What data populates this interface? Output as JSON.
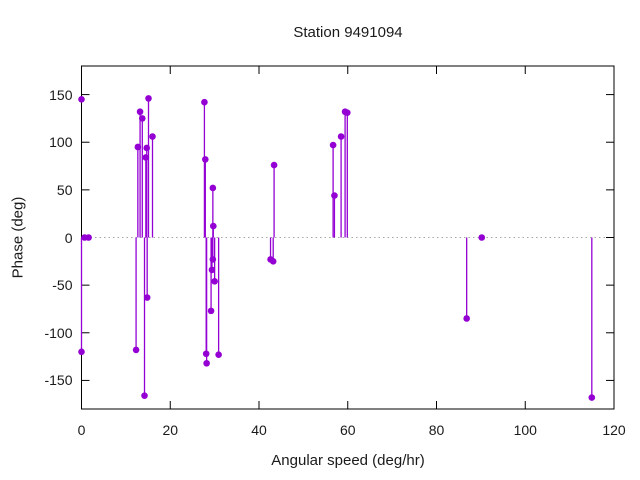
{
  "window": {
    "background": "#ffffff"
  },
  "colors": {
    "point": "#9400d3",
    "stem": "#9400d3",
    "frame": "#000000",
    "zero_line": "#a6a6a6",
    "text": "#1a1a1a"
  },
  "chart_data": {
    "type": "scatter",
    "style": "impulses-with-points",
    "title": "Station 9491094",
    "xlabel": "Angular speed (deg/hr)",
    "ylabel": "Phase (deg)",
    "xlim": [
      0,
      120
    ],
    "ylim": [
      -180,
      180
    ],
    "xticks": [
      0,
      20,
      40,
      60,
      80,
      100,
      120
    ],
    "yticks": [
      -150,
      -100,
      -50,
      0,
      50,
      100,
      150
    ],
    "grid": "off",
    "legend": "none",
    "zero_line_style": "dotted",
    "points": [
      {
        "x": 0,
        "y": 145,
        "stem": false
      },
      {
        "x": 0.7,
        "y": 0,
        "stem": false
      },
      {
        "x": 1.6,
        "y": 0,
        "stem": false
      },
      {
        "x": 0,
        "y": -120,
        "stem": true
      },
      {
        "x": 12.3,
        "y": -118,
        "stem": true
      },
      {
        "x": 12.7,
        "y": 95,
        "stem": true
      },
      {
        "x": 13.2,
        "y": 132,
        "stem": true
      },
      {
        "x": 13.7,
        "y": 125,
        "stem": true
      },
      {
        "x": 14.2,
        "y": -166,
        "stem": true
      },
      {
        "x": 14.5,
        "y": 84,
        "stem": true
      },
      {
        "x": 14.7,
        "y": 94,
        "stem": true
      },
      {
        "x": 14.8,
        "y": -63,
        "stem": true
      },
      {
        "x": 15.1,
        "y": 146,
        "stem": true
      },
      {
        "x": 16.0,
        "y": 106,
        "stem": true
      },
      {
        "x": 27.7,
        "y": 142,
        "stem": true
      },
      {
        "x": 27.9,
        "y": 82,
        "stem": true
      },
      {
        "x": 28.1,
        "y": -122,
        "stem": true
      },
      {
        "x": 28.2,
        "y": -132,
        "stem": true
      },
      {
        "x": 29.2,
        "y": -77,
        "stem": true
      },
      {
        "x": 29.4,
        "y": -34,
        "stem": true
      },
      {
        "x": 29.6,
        "y": 52,
        "stem": true
      },
      {
        "x": 29.6,
        "y": -23,
        "stem": true
      },
      {
        "x": 29.7,
        "y": 12,
        "stem": true
      },
      {
        "x": 30.0,
        "y": -46,
        "stem": true
      },
      {
        "x": 30.9,
        "y": -123,
        "stem": true
      },
      {
        "x": 42.6,
        "y": -23,
        "stem": true
      },
      {
        "x": 43.2,
        "y": -25,
        "stem": true
      },
      {
        "x": 43.4,
        "y": 76,
        "stem": true
      },
      {
        "x": 56.7,
        "y": 97,
        "stem": true
      },
      {
        "x": 57.0,
        "y": 44,
        "stem": true
      },
      {
        "x": 58.5,
        "y": 106,
        "stem": true
      },
      {
        "x": 59.4,
        "y": 132,
        "stem": true
      },
      {
        "x": 59.9,
        "y": 131,
        "stem": true
      },
      {
        "x": 86.8,
        "y": -85,
        "stem": true
      },
      {
        "x": 90.2,
        "y": 0,
        "stem": false
      },
      {
        "x": 115.0,
        "y": -168,
        "stem": true
      }
    ]
  }
}
